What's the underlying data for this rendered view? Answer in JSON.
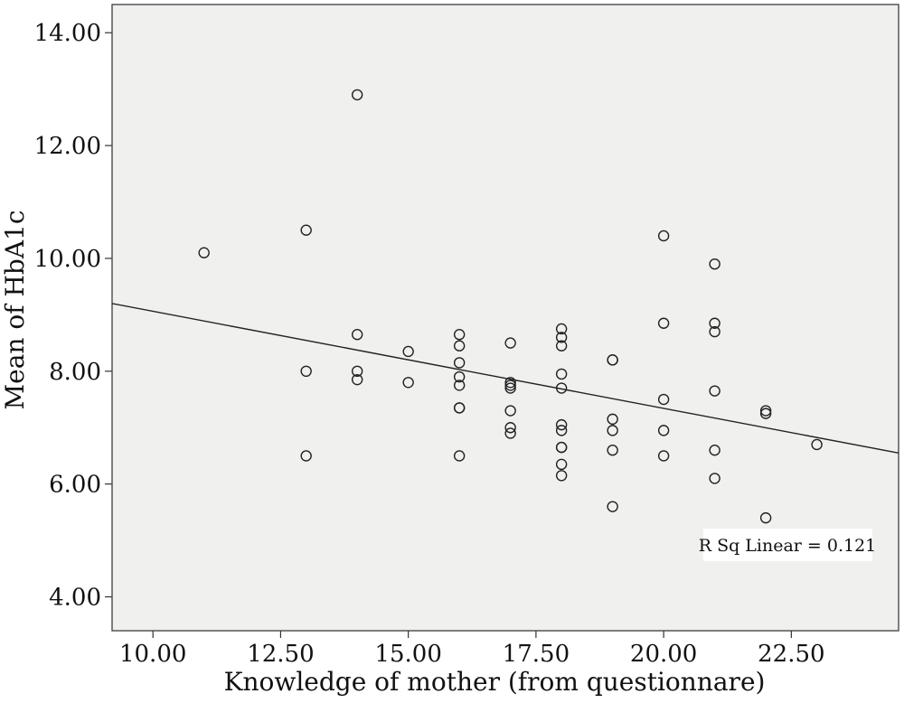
{
  "chart_data": {
    "type": "scatter",
    "title": "",
    "xlabel": "Knowledge of mother (from questionnare)",
    "ylabel": "Mean of HbA1c",
    "xlim": [
      9.2,
      24.6
    ],
    "ylim": [
      3.4,
      14.5
    ],
    "x_ticks": [
      10,
      12.5,
      15,
      17.5,
      20,
      22.5
    ],
    "x_tick_labels": [
      "10.00",
      "12.50",
      "15.00",
      "17.50",
      "20.00",
      "22.50"
    ],
    "y_ticks": [
      4,
      6,
      8,
      10,
      12,
      14
    ],
    "y_tick_labels": [
      "4.00",
      "6.00",
      "8.00",
      "10.00",
      "12.00",
      "14.00"
    ],
    "grid": false,
    "background": "#f0f0ef",
    "fit_line": {
      "type": "linear",
      "y_at_xmin": 9.2,
      "y_at_xmax": 6.55
    },
    "annotation": "R Sq Linear = 0.121",
    "points": [
      {
        "x": 11,
        "y": 10.1
      },
      {
        "x": 13,
        "y": 10.5
      },
      {
        "x": 13,
        "y": 8.0
      },
      {
        "x": 13,
        "y": 6.5
      },
      {
        "x": 14,
        "y": 12.9
      },
      {
        "x": 14,
        "y": 8.65
      },
      {
        "x": 14,
        "y": 8.0
      },
      {
        "x": 14,
        "y": 7.85
      },
      {
        "x": 15,
        "y": 8.35
      },
      {
        "x": 15,
        "y": 7.8
      },
      {
        "x": 16,
        "y": 8.65
      },
      {
        "x": 16,
        "y": 8.45
      },
      {
        "x": 16,
        "y": 8.15
      },
      {
        "x": 16,
        "y": 7.9
      },
      {
        "x": 16,
        "y": 7.75
      },
      {
        "x": 16,
        "y": 7.35
      },
      {
        "x": 16,
        "y": 7.35
      },
      {
        "x": 16,
        "y": 6.5
      },
      {
        "x": 17,
        "y": 8.5
      },
      {
        "x": 17,
        "y": 7.8
      },
      {
        "x": 17,
        "y": 7.75
      },
      {
        "x": 17,
        "y": 7.7
      },
      {
        "x": 17,
        "y": 7.3
      },
      {
        "x": 17,
        "y": 7.0
      },
      {
        "x": 17,
        "y": 6.9
      },
      {
        "x": 18,
        "y": 8.75
      },
      {
        "x": 18,
        "y": 8.6
      },
      {
        "x": 18,
        "y": 8.45
      },
      {
        "x": 18,
        "y": 7.95
      },
      {
        "x": 18,
        "y": 7.7
      },
      {
        "x": 18,
        "y": 7.05
      },
      {
        "x": 18,
        "y": 6.95
      },
      {
        "x": 18,
        "y": 6.65
      },
      {
        "x": 18,
        "y": 6.65
      },
      {
        "x": 18,
        "y": 6.35
      },
      {
        "x": 18,
        "y": 6.15
      },
      {
        "x": 19,
        "y": 8.2
      },
      {
        "x": 19,
        "y": 8.2
      },
      {
        "x": 19,
        "y": 7.15
      },
      {
        "x": 19,
        "y": 6.95
      },
      {
        "x": 19,
        "y": 6.6
      },
      {
        "x": 19,
        "y": 5.6
      },
      {
        "x": 20,
        "y": 10.4
      },
      {
        "x": 20,
        "y": 8.85
      },
      {
        "x": 20,
        "y": 7.5
      },
      {
        "x": 20,
        "y": 6.95
      },
      {
        "x": 20,
        "y": 6.5
      },
      {
        "x": 21,
        "y": 9.9
      },
      {
        "x": 21,
        "y": 8.85
      },
      {
        "x": 21,
        "y": 8.7
      },
      {
        "x": 21,
        "y": 7.65
      },
      {
        "x": 21,
        "y": 6.6
      },
      {
        "x": 21,
        "y": 6.1
      },
      {
        "x": 22,
        "y": 7.3
      },
      {
        "x": 22,
        "y": 7.25
      },
      {
        "x": 22,
        "y": 5.4
      },
      {
        "x": 23,
        "y": 6.7
      }
    ]
  }
}
